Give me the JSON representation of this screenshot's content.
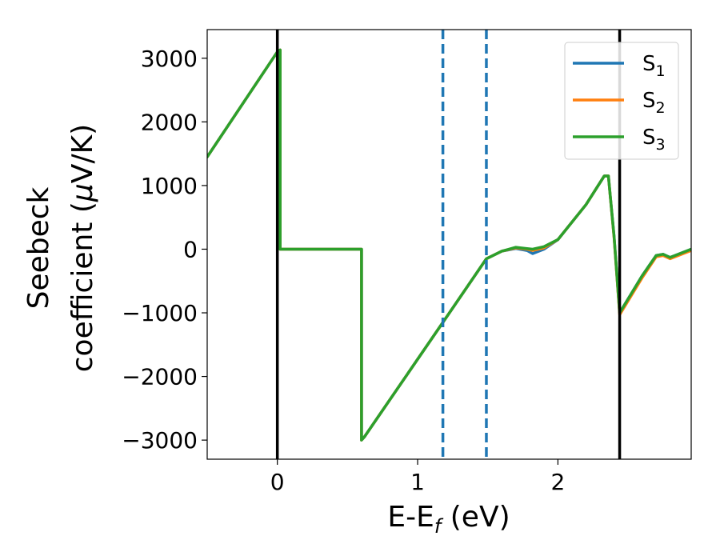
{
  "chart_data": {
    "type": "line",
    "xlabel": "E-E",
    "xlabel_sub": "f",
    "xlabel_unit": " (eV)",
    "ylabel_line1": "Seebeck",
    "ylabel_line2": "coefficient  (",
    "ylabel_mu": "μ",
    "ylabel_unit": "V/K)",
    "xlim": [
      -0.5,
      2.95
    ],
    "ylim": [
      -3300,
      3450
    ],
    "xticks": [
      0,
      1,
      2
    ],
    "yticks": [
      -3000,
      -2000,
      -1000,
      0,
      1000,
      2000,
      3000
    ],
    "xtick_labels": [
      "0",
      "1",
      "2"
    ],
    "ytick_labels": [
      "−3000",
      "−2000",
      "−1000",
      "0",
      "1000",
      "2000",
      "3000"
    ],
    "grid": false,
    "legend_position": "top-right",
    "vlines": [
      {
        "x": 0.0,
        "style": "solid",
        "color": "#000000"
      },
      {
        "x": 2.44,
        "style": "solid",
        "color": "#000000"
      },
      {
        "x": 1.18,
        "style": "dashed",
        "color": "#1f77b4"
      },
      {
        "x": 1.49,
        "style": "dashed",
        "color": "#1f77b4"
      }
    ],
    "series": [
      {
        "name": "S",
        "sub": "1",
        "color": "#1f77b4",
        "x": [
          -0.5,
          0.0,
          0.02,
          0.02,
          0.6,
          0.6,
          0.62,
          1.18,
          1.49,
          1.6,
          1.7,
          1.78,
          1.82,
          1.9,
          2.0,
          2.2,
          2.33,
          2.36,
          2.4,
          2.43,
          2.44,
          2.6,
          2.7,
          2.75,
          2.8,
          2.95
        ],
        "y": [
          1450,
          3100,
          3130,
          0,
          0,
          -3000,
          -2950,
          -1150,
          -150,
          -30,
          10,
          -20,
          -70,
          0,
          150,
          700,
          1150,
          1150,
          200,
          -700,
          -1000,
          -420,
          -100,
          -80,
          -130,
          0
        ]
      },
      {
        "name": "S",
        "sub": "2",
        "color": "#ff7f0e",
        "x": [
          -0.5,
          0.0,
          0.02,
          0.02,
          0.6,
          0.6,
          0.62,
          1.18,
          1.49,
          1.6,
          1.7,
          1.78,
          1.82,
          1.9,
          2.0,
          2.2,
          2.33,
          2.36,
          2.4,
          2.43,
          2.44,
          2.6,
          2.7,
          2.75,
          2.8,
          2.95
        ],
        "y": [
          1450,
          3100,
          3130,
          0,
          0,
          -3000,
          -2950,
          -1150,
          -150,
          -30,
          20,
          0,
          -20,
          20,
          150,
          700,
          1150,
          1150,
          180,
          -720,
          -1030,
          -450,
          -120,
          -100,
          -150,
          -20
        ]
      },
      {
        "name": "S",
        "sub": "3",
        "color": "#2ca02c",
        "x": [
          -0.5,
          0.0,
          0.02,
          0.02,
          0.6,
          0.6,
          0.62,
          1.18,
          1.49,
          1.6,
          1.7,
          1.78,
          1.82,
          1.9,
          2.0,
          2.2,
          2.33,
          2.36,
          2.4,
          2.43,
          2.44,
          2.6,
          2.7,
          2.75,
          2.8,
          2.95
        ],
        "y": [
          1450,
          3100,
          3130,
          0,
          0,
          -3000,
          -2950,
          -1150,
          -150,
          -30,
          30,
          10,
          0,
          40,
          150,
          700,
          1150,
          1150,
          200,
          -700,
          -1000,
          -420,
          -100,
          -80,
          -130,
          0
        ]
      }
    ]
  }
}
